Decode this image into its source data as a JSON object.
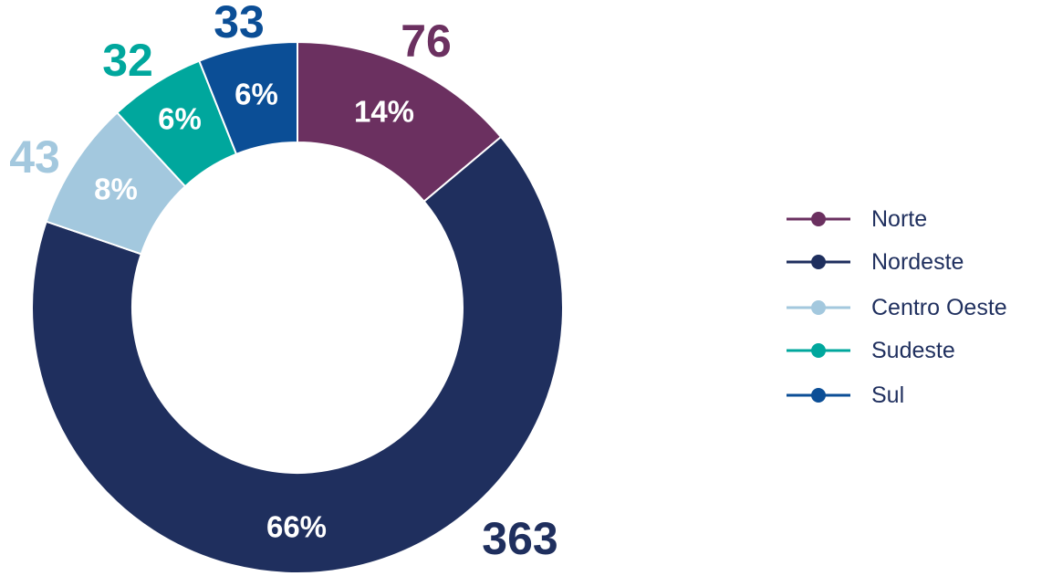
{
  "chart_data": {
    "type": "pie",
    "variant": "donut",
    "categories": [
      "Norte",
      "Nordeste",
      "Centro Oeste",
      "Sudeste",
      "Sul"
    ],
    "values": [
      76,
      363,
      43,
      32,
      33
    ],
    "percent_labels": [
      "14%",
      "66%",
      "8%",
      "6%",
      "6%"
    ],
    "colors": [
      "#6b3060",
      "#1f2f5e",
      "#a3c8de",
      "#00a79d",
      "#0b4e96"
    ],
    "legend": {
      "position": "right",
      "entries": [
        "Norte",
        "Nordeste",
        "Centro Oeste",
        "Sudeste",
        "Sul"
      ]
    },
    "title": ""
  }
}
